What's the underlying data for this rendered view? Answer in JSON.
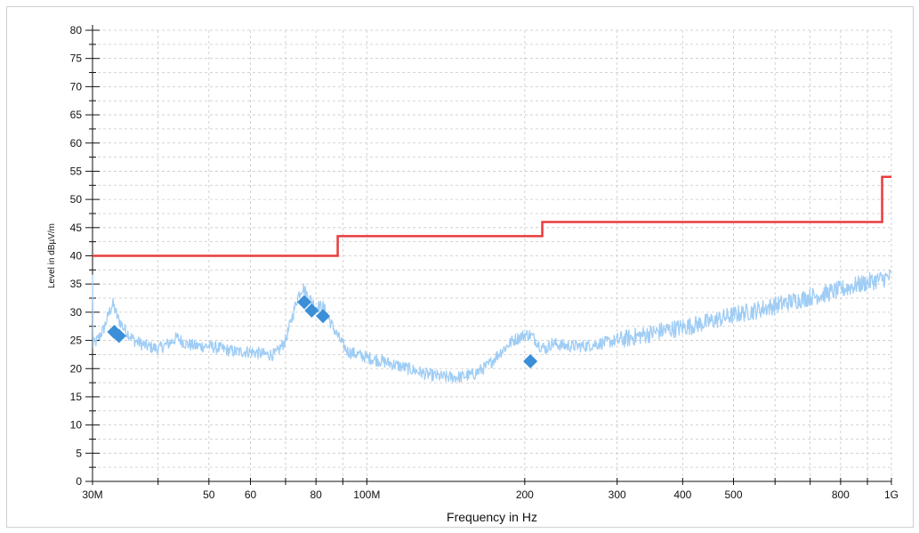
{
  "chart_data": {
    "type": "line",
    "title": "",
    "xlabel": "Frequency in Hz",
    "ylabel": "Level in dBµV/m",
    "x_scale": "log",
    "xlim": [
      "30M",
      "1G"
    ],
    "ylim": [
      0,
      80
    ],
    "grid": true,
    "x_tick_labels": [
      {
        "label": "30M",
        "value_mhz": 30
      },
      {
        "label": "50",
        "value_mhz": 50
      },
      {
        "label": "60",
        "value_mhz": 60
      },
      {
        "label": "80",
        "value_mhz": 80
      },
      {
        "label": "100M",
        "value_mhz": 100
      },
      {
        "label": "200",
        "value_mhz": 200
      },
      {
        "label": "300",
        "value_mhz": 300
      },
      {
        "label": "400",
        "value_mhz": 400
      },
      {
        "label": "500",
        "value_mhz": 500
      },
      {
        "label": "800",
        "value_mhz": 800
      },
      {
        "label": "1G",
        "value_mhz": 1000
      }
    ],
    "y_ticks": [
      0,
      5,
      10,
      15,
      20,
      25,
      30,
      35,
      40,
      45,
      50,
      55,
      60,
      65,
      70,
      75,
      80
    ],
    "limit_line": {
      "color": "#e83c3c",
      "points": [
        [
          30,
          40
        ],
        [
          88,
          40
        ],
        [
          88,
          43.5
        ],
        [
          216,
          43.5
        ],
        [
          216,
          46
        ],
        [
          960,
          46
        ],
        [
          960,
          54
        ],
        [
          1000,
          54
        ]
      ]
    },
    "spectrum": {
      "color": "#9fcdf5",
      "points": [
        [
          30,
          24
        ],
        [
          30.6,
          25
        ],
        [
          31.5,
          27
        ],
        [
          32.3,
          30
        ],
        [
          32.8,
          31.5
        ],
        [
          33.5,
          29
        ],
        [
          34.5,
          27
        ],
        [
          36,
          25
        ],
        [
          38,
          24
        ],
        [
          40,
          23.5
        ],
        [
          42,
          24.5
        ],
        [
          43.5,
          25.5
        ],
        [
          45,
          24.5
        ],
        [
          47,
          24
        ],
        [
          50,
          24
        ],
        [
          53,
          23.5
        ],
        [
          56,
          23
        ],
        [
          60,
          23
        ],
        [
          64,
          22.5
        ],
        [
          67,
          22.5
        ],
        [
          70,
          25
        ],
        [
          72,
          29
        ],
        [
          74,
          33
        ],
        [
          75.5,
          34.5
        ],
        [
          77,
          33
        ],
        [
          80,
          31
        ],
        [
          82.5,
          31
        ],
        [
          84,
          29.5
        ],
        [
          86,
          27.5
        ],
        [
          89,
          25
        ],
        [
          92,
          23
        ],
        [
          96,
          22.5
        ],
        [
          100,
          22
        ],
        [
          110,
          21
        ],
        [
          120,
          20
        ],
        [
          130,
          19
        ],
        [
          140,
          18.5
        ],
        [
          150,
          18.5
        ],
        [
          160,
          19
        ],
        [
          170,
          20.5
        ],
        [
          180,
          23
        ],
        [
          190,
          25
        ],
        [
          200,
          26
        ],
        [
          205,
          26
        ],
        [
          210,
          25
        ],
        [
          214,
          24
        ],
        [
          220,
          23.5
        ],
        [
          225,
          24.5
        ],
        [
          240,
          24
        ],
        [
          260,
          24
        ],
        [
          280,
          24.5
        ],
        [
          300,
          25
        ],
        [
          330,
          25.8
        ],
        [
          370,
          26.8
        ],
        [
          400,
          27.3
        ],
        [
          450,
          28.3
        ],
        [
          500,
          29.5
        ],
        [
          550,
          30.3
        ],
        [
          600,
          31.2
        ],
        [
          650,
          32
        ],
        [
          700,
          32.7
        ],
        [
          750,
          33.3
        ],
        [
          800,
          34
        ],
        [
          850,
          34.7
        ],
        [
          900,
          35.3
        ],
        [
          950,
          35.8
        ],
        [
          1000,
          36.3
        ]
      ]
    },
    "markers": {
      "color": "#3a8fd8",
      "points": [
        [
          33,
          26.5
        ],
        [
          33.7,
          25.8
        ],
        [
          76,
          31.8
        ],
        [
          78.5,
          30.3
        ],
        [
          82.5,
          29.3
        ],
        [
          205,
          21.3
        ]
      ]
    }
  }
}
